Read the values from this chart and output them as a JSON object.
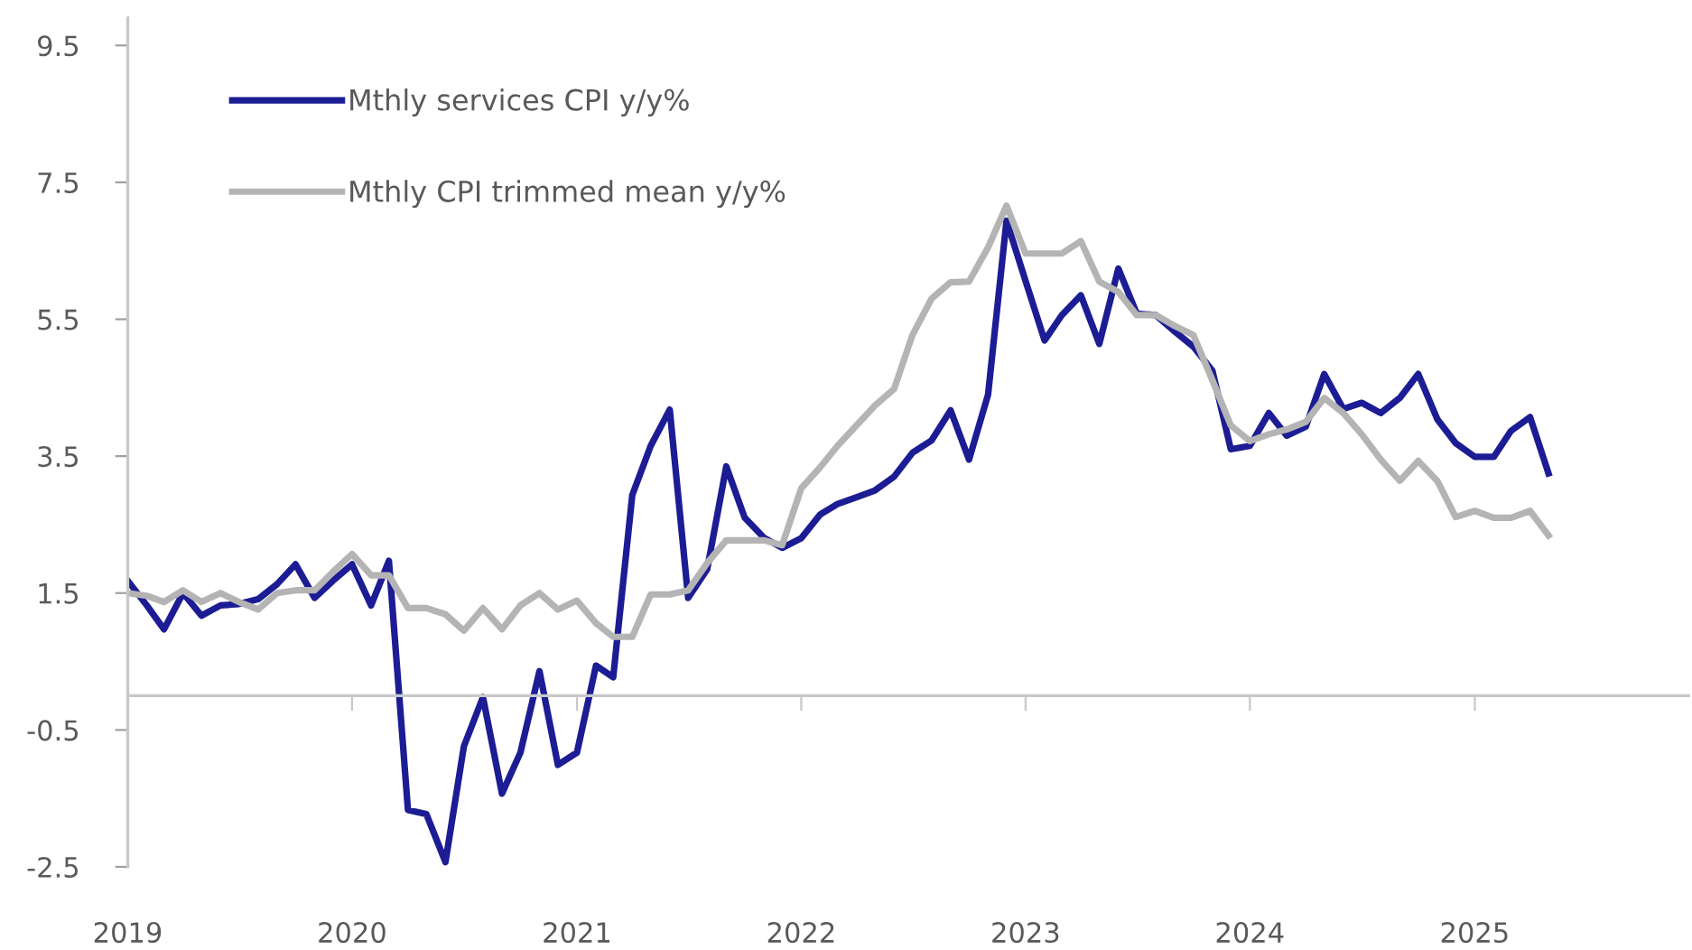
{
  "chart_data": {
    "type": "line",
    "x": [
      "2019-01",
      "2019-02",
      "2019-03",
      "2019-04",
      "2019-05",
      "2019-06",
      "2019-07",
      "2019-08",
      "2019-09",
      "2019-10",
      "2019-11",
      "2019-12",
      "2020-01",
      "2020-02",
      "2020-03",
      "2020-04",
      "2020-05",
      "2020-06",
      "2020-07",
      "2020-08",
      "2020-09",
      "2020-10",
      "2020-11",
      "2020-12",
      "2021-01",
      "2021-02",
      "2021-03",
      "2021-04",
      "2021-05",
      "2021-06",
      "2021-07",
      "2021-08",
      "2021-09",
      "2021-10",
      "2021-11",
      "2021-12",
      "2022-01",
      "2022-02",
      "2022-03",
      "2022-04",
      "2022-05",
      "2022-06",
      "2022-07",
      "2022-08",
      "2022-09",
      "2022-10",
      "2022-11",
      "2022-12",
      "2023-01",
      "2023-02",
      "2023-03",
      "2023-04",
      "2023-05",
      "2023-06",
      "2023-07",
      "2023-08",
      "2023-09",
      "2023-10",
      "2023-11",
      "2023-12",
      "2024-01",
      "2024-02",
      "2024-03",
      "2024-04",
      "2024-05",
      "2024-06",
      "2024-07",
      "2024-08",
      "2024-09",
      "2024-10",
      "2024-11",
      "2024-12",
      "2025-01",
      "2025-02",
      "2025-03",
      "2025-04",
      "2025-05"
    ],
    "series": [
      {
        "name": "Mthly services CPI y/y%",
        "color": "#1c1c94",
        "values": [
          1.68,
          1.32,
          0.97,
          1.5,
          1.17,
          1.32,
          1.34,
          1.41,
          1.63,
          1.92,
          1.43,
          1.68,
          1.92,
          1.32,
          1.97,
          -1.67,
          -1.73,
          -2.43,
          -0.74,
          -0.02,
          -1.43,
          -0.83,
          0.36,
          -1.01,
          -0.83,
          0.44,
          0.27,
          2.93,
          3.65,
          4.18,
          1.43,
          1.85,
          3.35,
          2.6,
          2.31,
          2.16,
          2.3,
          2.65,
          2.8,
          2.9,
          3.0,
          3.2,
          3.55,
          3.73,
          4.17,
          3.45,
          4.4,
          6.94,
          6.06,
          5.19,
          5.56,
          5.85,
          5.14,
          6.24,
          5.58,
          5.56,
          5.32,
          5.1,
          4.75,
          3.6,
          3.65,
          4.13,
          3.8,
          3.93,
          4.7,
          4.19,
          4.28,
          4.13,
          4.35,
          4.7,
          4.04,
          3.69,
          3.49,
          3.49,
          3.87,
          4.07,
          3.25
        ]
      },
      {
        "name": "Mthly CPI trimmed mean y/y%",
        "color": "#b4b4b4",
        "values": [
          1.5,
          1.46,
          1.37,
          1.54,
          1.37,
          1.5,
          1.37,
          1.26,
          1.5,
          1.54,
          1.54,
          1.81,
          2.07,
          1.76,
          1.76,
          1.28,
          1.28,
          1.19,
          0.95,
          1.28,
          0.97,
          1.32,
          1.5,
          1.26,
          1.39,
          1.06,
          0.86,
          0.86,
          1.48,
          1.48,
          1.54,
          1.94,
          2.27,
          2.27,
          2.27,
          2.2,
          3.03,
          3.34,
          3.65,
          3.95,
          4.24,
          4.48,
          5.27,
          5.8,
          6.04,
          6.05,
          6.55,
          7.16,
          6.46,
          6.46,
          6.46,
          6.64,
          6.05,
          5.9,
          5.56,
          5.56,
          5.4,
          5.27,
          4.61,
          3.95,
          3.72,
          3.82,
          3.89,
          4.0,
          4.35,
          4.13,
          3.82,
          3.45,
          3.14,
          3.43,
          3.14,
          2.61,
          2.7,
          2.6,
          2.6,
          2.7,
          2.34
        ]
      }
    ],
    "xlim": [
      "2019-01-01",
      "2025-12-15"
    ],
    "xticks": [
      "2019",
      "2020",
      "2021",
      "2022",
      "2023",
      "2024",
      "2025"
    ],
    "ylim": [
      -2.5,
      9.9
    ],
    "yticks": [
      -2.5,
      -0.5,
      1.5,
      3.5,
      5.5,
      7.5,
      9.5
    ],
    "grid": false,
    "legend": "top left",
    "marker": "none",
    "line_style": "solid"
  }
}
